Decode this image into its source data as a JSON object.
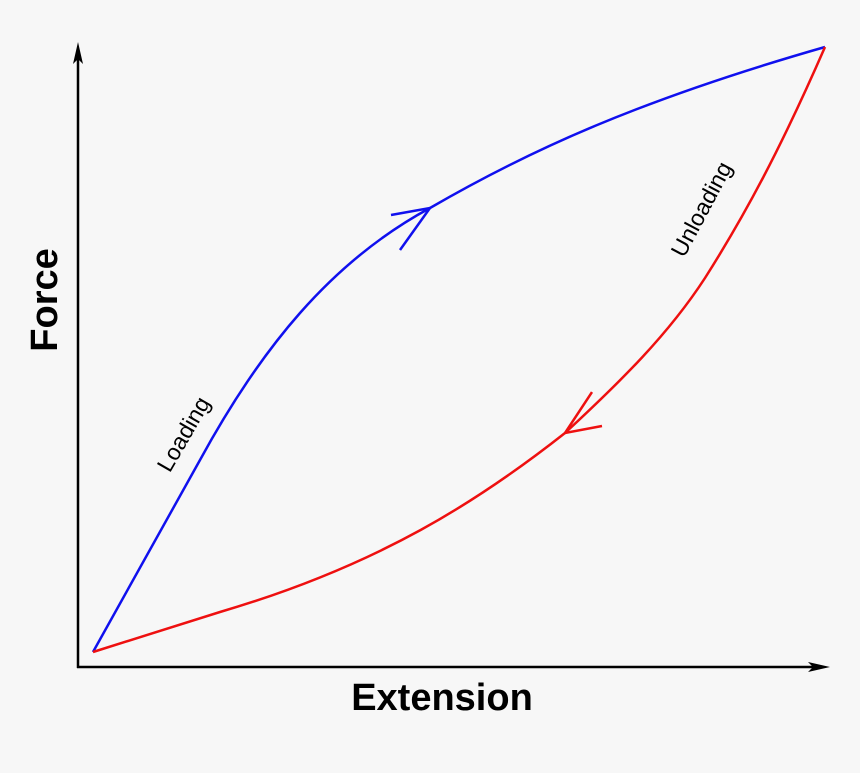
{
  "axes": {
    "y_label": "Force",
    "x_label": "Extension"
  },
  "curves": {
    "loading": {
      "label": "Loading"
    },
    "unloading": {
      "label": "Unloading"
    }
  }
}
